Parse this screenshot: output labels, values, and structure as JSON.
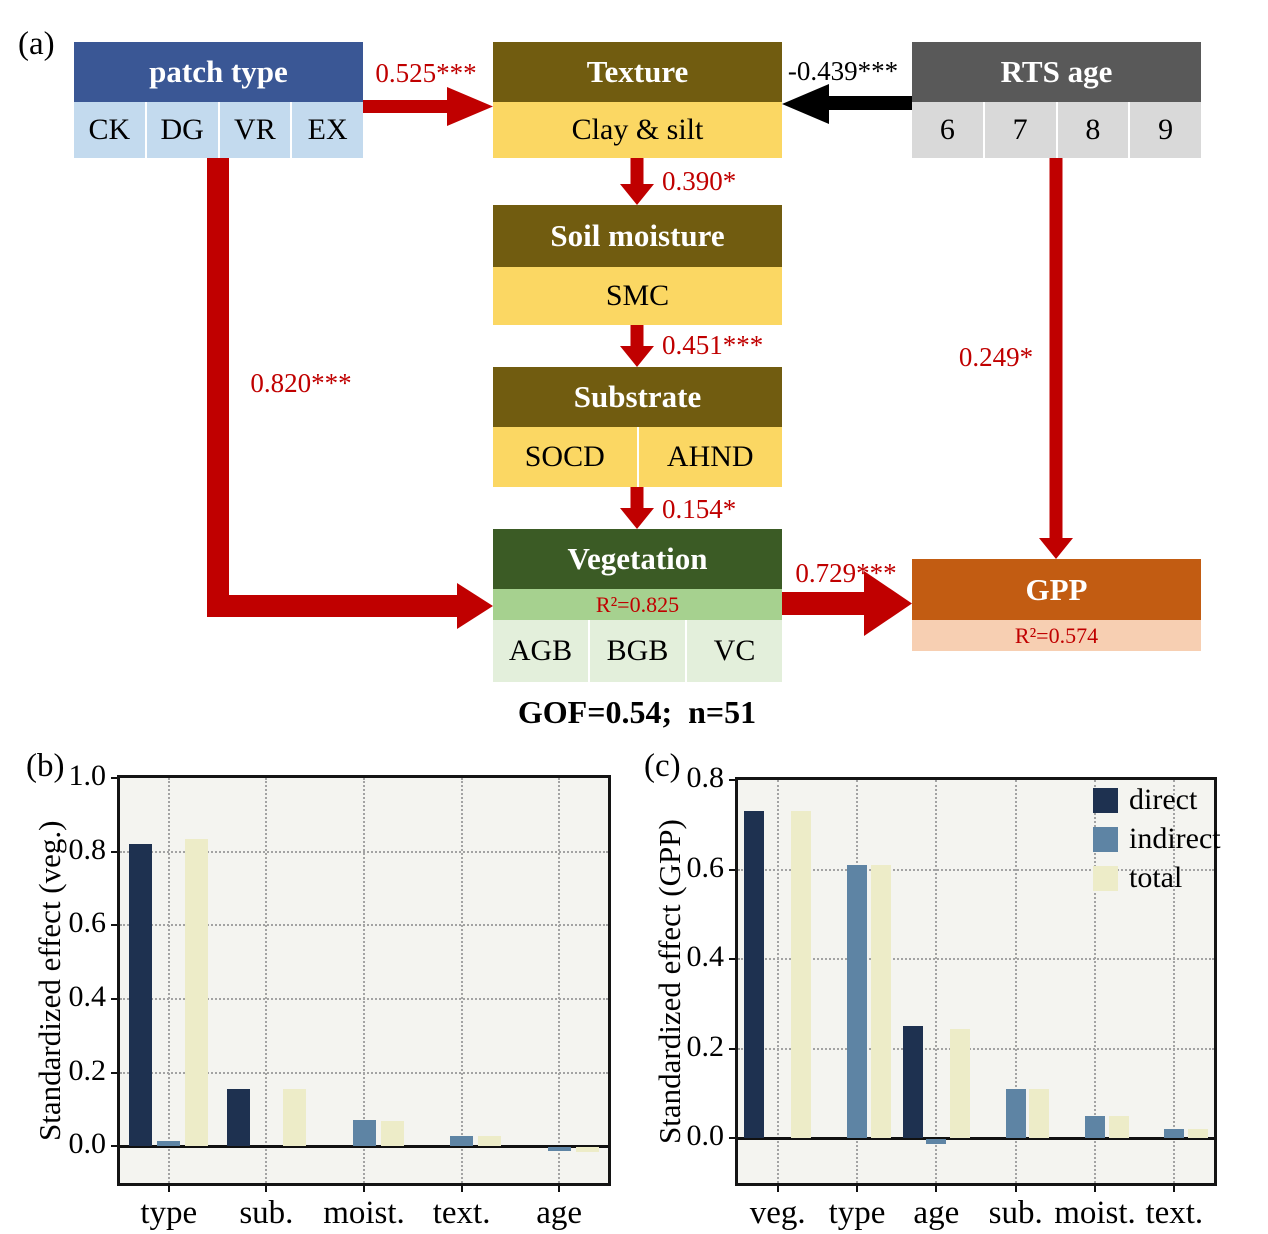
{
  "figure": {
    "panel_a_label": "(a)",
    "panel_b_label": "(b)",
    "panel_c_label": "(c)",
    "gof_label": "GOF=0.54;  n=51"
  },
  "diagram": {
    "boxes": {
      "patch_type": {
        "title": "patch type",
        "cells": [
          "CK",
          "DG",
          "VR",
          "EX"
        ],
        "header_color": "#3A5795",
        "cell_color": "#C3DAEE"
      },
      "texture": {
        "title": "Texture",
        "cells": [
          "Clay & silt"
        ],
        "header_color": "#715C10",
        "cell_color": "#FBD763"
      },
      "rts_age": {
        "title": "RTS age",
        "cells": [
          "6",
          "7",
          "8",
          "9"
        ],
        "header_color": "#595959",
        "cell_color": "#D9D9D9"
      },
      "soil_moisture": {
        "title": "Soil moisture",
        "cells": [
          "SMC"
        ],
        "header_color": "#715C10",
        "cell_color": "#FBD763"
      },
      "substrate": {
        "title": "Substrate",
        "cells": [
          "SOCD",
          "AHND"
        ],
        "header_color": "#715C10",
        "cell_color": "#FBD763"
      },
      "vegetation": {
        "title": "Vegetation",
        "r2_label": "R²=0.825",
        "cells": [
          "AGB",
          "BGB",
          "VC"
        ],
        "header_color": "#3B5B25",
        "r2_color": "#A6D18F",
        "cell_color": "#E3EFDB"
      },
      "gpp": {
        "title": "GPP",
        "r2_label": "R²=0.574",
        "header_color": "#C25C12",
        "r2_color": "#F7CFB2"
      }
    },
    "path_labels": {
      "patch_to_texture": "0.525***",
      "age_to_texture": "-0.439***",
      "texture_to_moisture": "0.390*",
      "moisture_to_substrate": "0.451***",
      "substrate_to_vegetation": "0.154*",
      "patch_to_vegetation": "0.820***",
      "vegetation_to_gpp": "0.729***",
      "age_to_gpp": "0.249*"
    },
    "colors": {
      "positive_path": "#C00000",
      "negative_path": "#000000"
    }
  },
  "chart_data": [
    {
      "type": "bar",
      "title": "",
      "ylabel": "Standardized effect (veg.)",
      "categories": [
        "type",
        "sub.",
        "moist.",
        "text.",
        "age"
      ],
      "series": [
        {
          "name": "direct",
          "color": "#1E3150",
          "values": [
            0.82,
            0.155,
            0,
            0,
            0
          ]
        },
        {
          "name": "indirect",
          "color": "#5E84A4",
          "values": [
            0.015,
            0,
            0.07,
            0.027,
            -0.01
          ]
        },
        {
          "name": "total",
          "color": "#EDECC8",
          "values": [
            0.835,
            0.155,
            0.068,
            0.027,
            -0.012
          ]
        }
      ],
      "ylim": [
        -0.1,
        1.0
      ],
      "yticks": [
        0.0,
        0.2,
        0.4,
        0.6,
        0.8,
        1.0
      ],
      "grid": true,
      "legend": false,
      "legend_position": ""
    },
    {
      "type": "bar",
      "title": "",
      "ylabel": "Standardized effect (GPP)",
      "categories": [
        "veg.",
        "type",
        "age",
        "sub.",
        "moist.",
        "text."
      ],
      "series": [
        {
          "name": "direct",
          "color": "#1E3150",
          "values": [
            0.73,
            0,
            0.25,
            0,
            0,
            0
          ]
        },
        {
          "name": "indirect",
          "color": "#5E84A4",
          "values": [
            0,
            0.61,
            -0.01,
            0.11,
            0.05,
            0.02
          ]
        },
        {
          "name": "total",
          "color": "#EDECC8",
          "values": [
            0.73,
            0.61,
            0.245,
            0.11,
            0.05,
            0.02
          ]
        }
      ],
      "ylim": [
        -0.1,
        0.8
      ],
      "yticks": [
        0.0,
        0.2,
        0.4,
        0.6,
        0.8
      ],
      "grid": true,
      "legend": true,
      "legend_position": "upper right"
    }
  ]
}
